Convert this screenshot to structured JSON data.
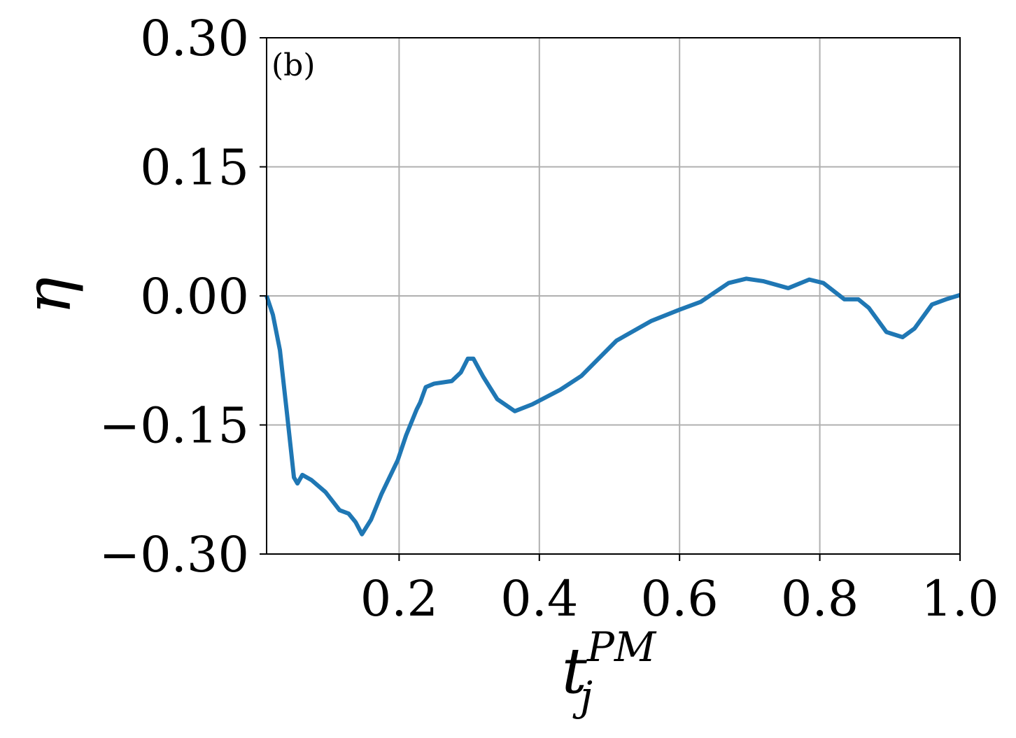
{
  "chart_data": {
    "type": "line",
    "xlabel": {
      "base": "t",
      "subscript": "j",
      "superscript": "PM"
    },
    "ylabel": "η",
    "annotation": "(b)",
    "xlim": [
      0.011,
      1.0
    ],
    "ylim": [
      -0.3,
      0.3
    ],
    "xticks": [
      0.2,
      0.4,
      0.6,
      0.8,
      {
        "value": 1.0,
        "label": "1.0"
      }
    ],
    "yticks": [
      {
        "value": -0.3,
        "label": "−0.30"
      },
      {
        "value": -0.15,
        "label": "−0.15"
      },
      {
        "value": 0,
        "label": "0.00"
      },
      {
        "value": 0.15,
        "label": "0.15"
      },
      {
        "value": 0.3,
        "label": "0.30"
      }
    ],
    "grid": true,
    "series": [
      {
        "color": "#1f77b4",
        "x": [
          0.011,
          0.02,
          0.03,
          0.04,
          0.05,
          0.055,
          0.062,
          0.075,
          0.095,
          0.115,
          0.128,
          0.138,
          0.147,
          0.16,
          0.175,
          0.198,
          0.21,
          0.225,
          0.23,
          0.238,
          0.25,
          0.275,
          0.288,
          0.298,
          0.306,
          0.32,
          0.34,
          0.365,
          0.39,
          0.43,
          0.46,
          0.51,
          0.56,
          0.6,
          0.63,
          0.67,
          0.695,
          0.72,
          0.755,
          0.785,
          0.805,
          0.835,
          0.855,
          0.87,
          0.895,
          0.918,
          0.935,
          0.96,
          0.98,
          1.0
        ],
        "values": [
          0.0,
          -0.022,
          -0.063,
          -0.136,
          -0.211,
          -0.218,
          -0.208,
          -0.214,
          -0.228,
          -0.249,
          -0.253,
          -0.263,
          -0.277,
          -0.26,
          -0.23,
          -0.191,
          -0.162,
          -0.132,
          -0.124,
          -0.106,
          -0.102,
          -0.099,
          -0.089,
          -0.073,
          -0.073,
          -0.094,
          -0.12,
          -0.134,
          -0.126,
          -0.109,
          -0.093,
          -0.052,
          -0.029,
          -0.016,
          -0.007,
          0.015,
          0.02,
          0.017,
          0.009,
          0.019,
          0.015,
          -0.004,
          -0.004,
          -0.014,
          -0.042,
          -0.048,
          -0.038,
          -0.01,
          -0.004,
          0.001
        ]
      }
    ]
  }
}
